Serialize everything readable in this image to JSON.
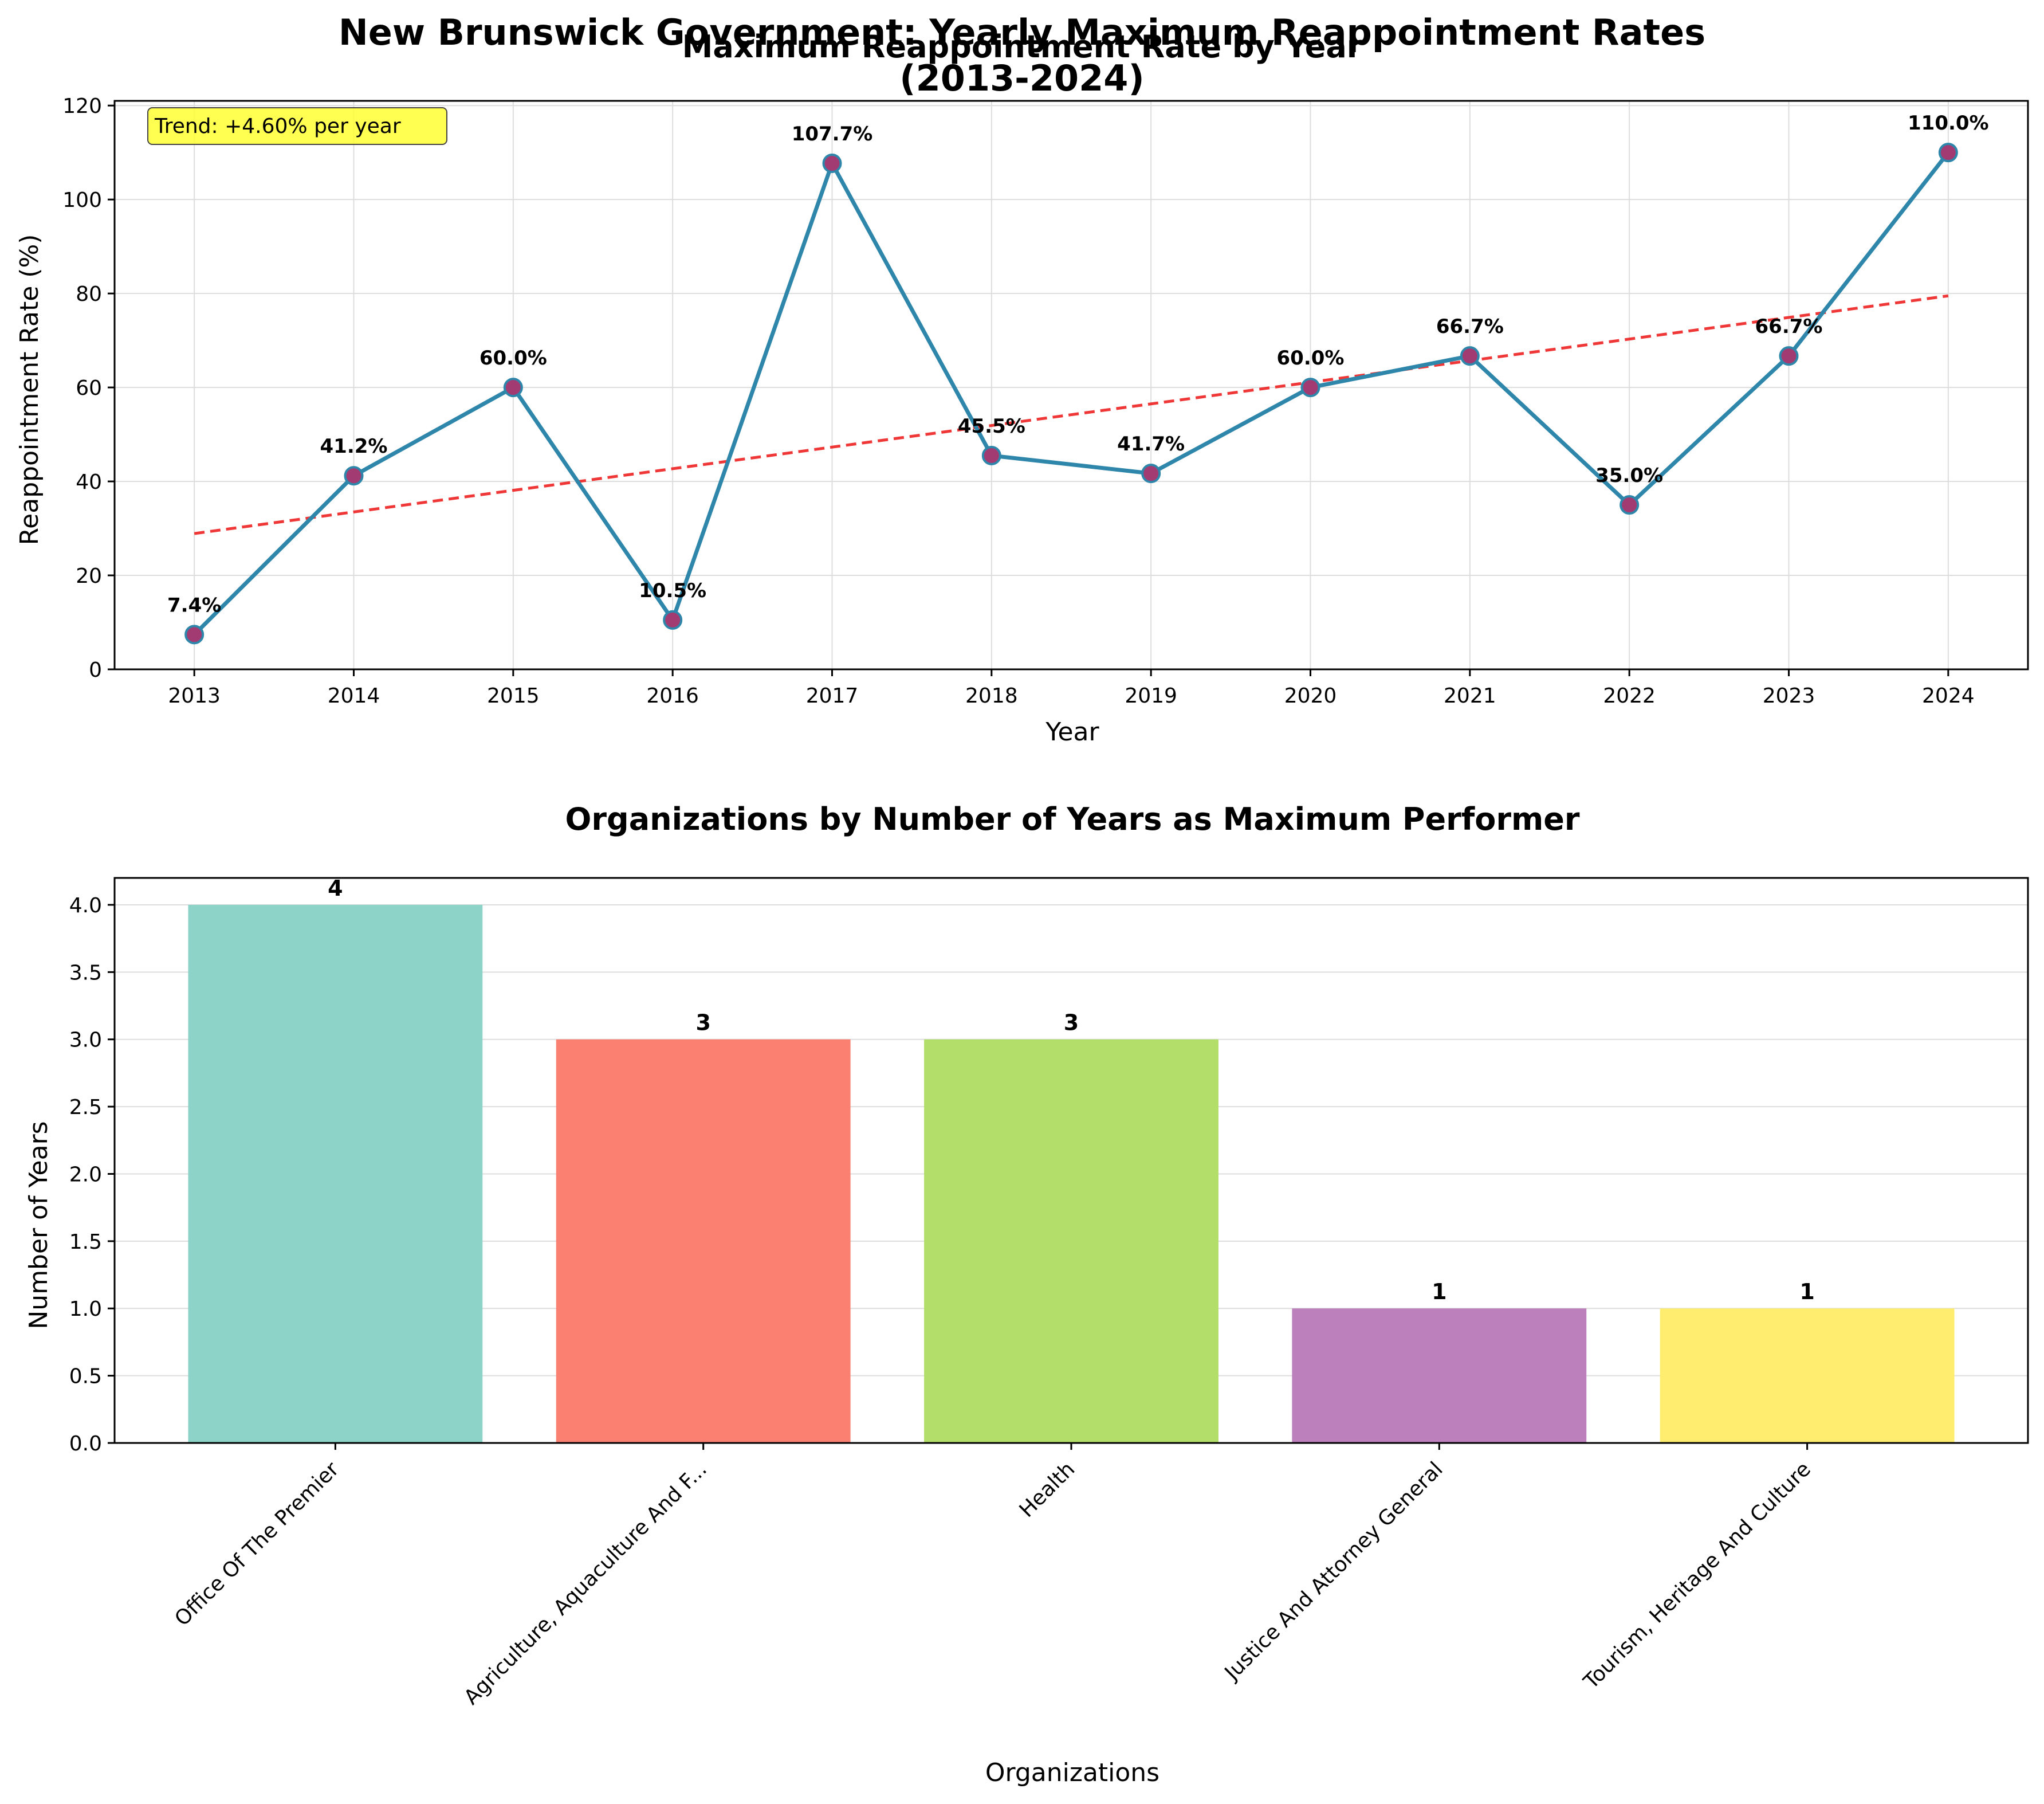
{
  "figure": {
    "suptitle_line1": "New Brunswick Government: Yearly Maximum Reappointment Rates",
    "suptitle_line2": "(2013-2024)"
  },
  "colors": {
    "line": "#2e86ab",
    "marker_face": "#a23b72",
    "trend": "#ee2222",
    "trend_box": "#ffff33",
    "grid": "#dddddd"
  },
  "chart_data": [
    {
      "type": "line",
      "title": "Maximum Reappointment Rate by Year",
      "xlabel": "Year",
      "ylabel": "Reappointment Rate (%)",
      "x": [
        2013,
        2014,
        2015,
        2016,
        2017,
        2018,
        2019,
        2020,
        2021,
        2022,
        2023,
        2024
      ],
      "x_tick_labels": [
        "2013",
        "2014",
        "2015",
        "2016",
        "2017",
        "2018",
        "2019",
        "2020",
        "2021",
        "2022",
        "2023",
        "2024"
      ],
      "values": [
        7.4,
        41.2,
        60.0,
        10.5,
        107.7,
        45.5,
        41.7,
        60.0,
        66.7,
        35.0,
        66.7,
        110.0
      ],
      "data_labels": [
        "7.4%",
        "41.2%",
        "60.0%",
        "10.5%",
        "107.7%",
        "45.5%",
        "41.7%",
        "60.0%",
        "66.7%",
        "35.0%",
        "66.7%",
        "110.0%"
      ],
      "trend_line": {
        "start": 28.9,
        "end": 79.5
      },
      "trend_annotation": "Trend: +4.60% per year",
      "ylim": [
        0,
        120
      ],
      "y_ticks": [
        0,
        20,
        40,
        60,
        80,
        100,
        120
      ],
      "y_tick_labels": [
        "0",
        "20",
        "40",
        "60",
        "80",
        "100",
        "120"
      ],
      "grid": true
    },
    {
      "type": "bar",
      "title": "Organizations by Number of Years as Maximum Performer",
      "xlabel": "Organizations",
      "ylabel": "Number of Years",
      "categories": [
        "Office Of The Premier",
        "Agriculture, Aquaculture And F...",
        "Health",
        "Justice And Attorney General",
        "Tourism, Heritage And Culture"
      ],
      "values": [
        4,
        3,
        3,
        1,
        1
      ],
      "data_labels": [
        "4",
        "3",
        "3",
        "1",
        "1"
      ],
      "bar_colors": [
        "#8dd3c7",
        "#fb8072",
        "#b3de69",
        "#bc80bd",
        "#ffed6f"
      ],
      "ylim": [
        0,
        4.2
      ],
      "y_ticks": [
        0,
        0.5,
        1.0,
        1.5,
        2.0,
        2.5,
        3.0,
        3.5,
        4.0
      ],
      "y_tick_labels": [
        "0.0",
        "0.5",
        "1.0",
        "1.5",
        "2.0",
        "2.5",
        "3.0",
        "3.5",
        "4.0"
      ],
      "grid": true
    }
  ]
}
